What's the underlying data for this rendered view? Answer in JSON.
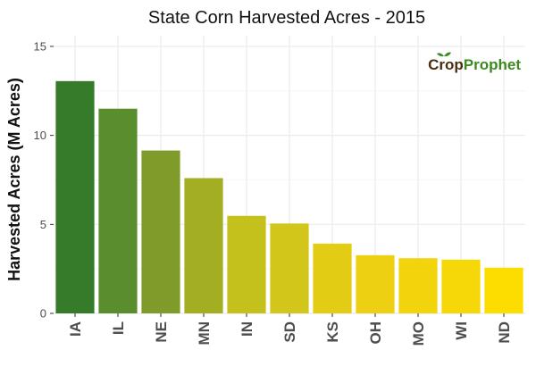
{
  "chart_data": {
    "type": "bar",
    "title": "State Corn Harvested Acres - 2015",
    "xlabel": "",
    "ylabel": "Harvested Acres (M Acres)",
    "categories": [
      "IA",
      "IL",
      "NE",
      "MN",
      "IN",
      "SD",
      "KS",
      "OH",
      "MO",
      "WI",
      "ND"
    ],
    "values": [
      13.05,
      11.5,
      9.15,
      7.6,
      5.48,
      5.05,
      3.92,
      3.27,
      3.1,
      3.02,
      2.57
    ],
    "ylim": [
      0,
      15.6
    ],
    "yticks": [
      "0",
      "5",
      "10",
      "15"
    ],
    "ytick_values": [
      0,
      5,
      10,
      15
    ],
    "grid": true,
    "legend": "none"
  },
  "logo": {
    "text_a": "Crop",
    "text_b": "Prophet"
  },
  "colors": {
    "bars": [
      "#367b2a",
      "#5a8d2d",
      "#7f9c2a",
      "#a3ae23",
      "#c4c01c",
      "#d2c61a",
      "#e3cc14",
      "#edd012",
      "#f2d40c",
      "#f6d809",
      "#fddd00"
    ],
    "grid_major": "#ebebeb",
    "grid_minor": "#f4f4f4",
    "axis_text": "#4d4d4d",
    "logo_brown": "#4a2e12",
    "logo_green": "#3b8a1e"
  }
}
